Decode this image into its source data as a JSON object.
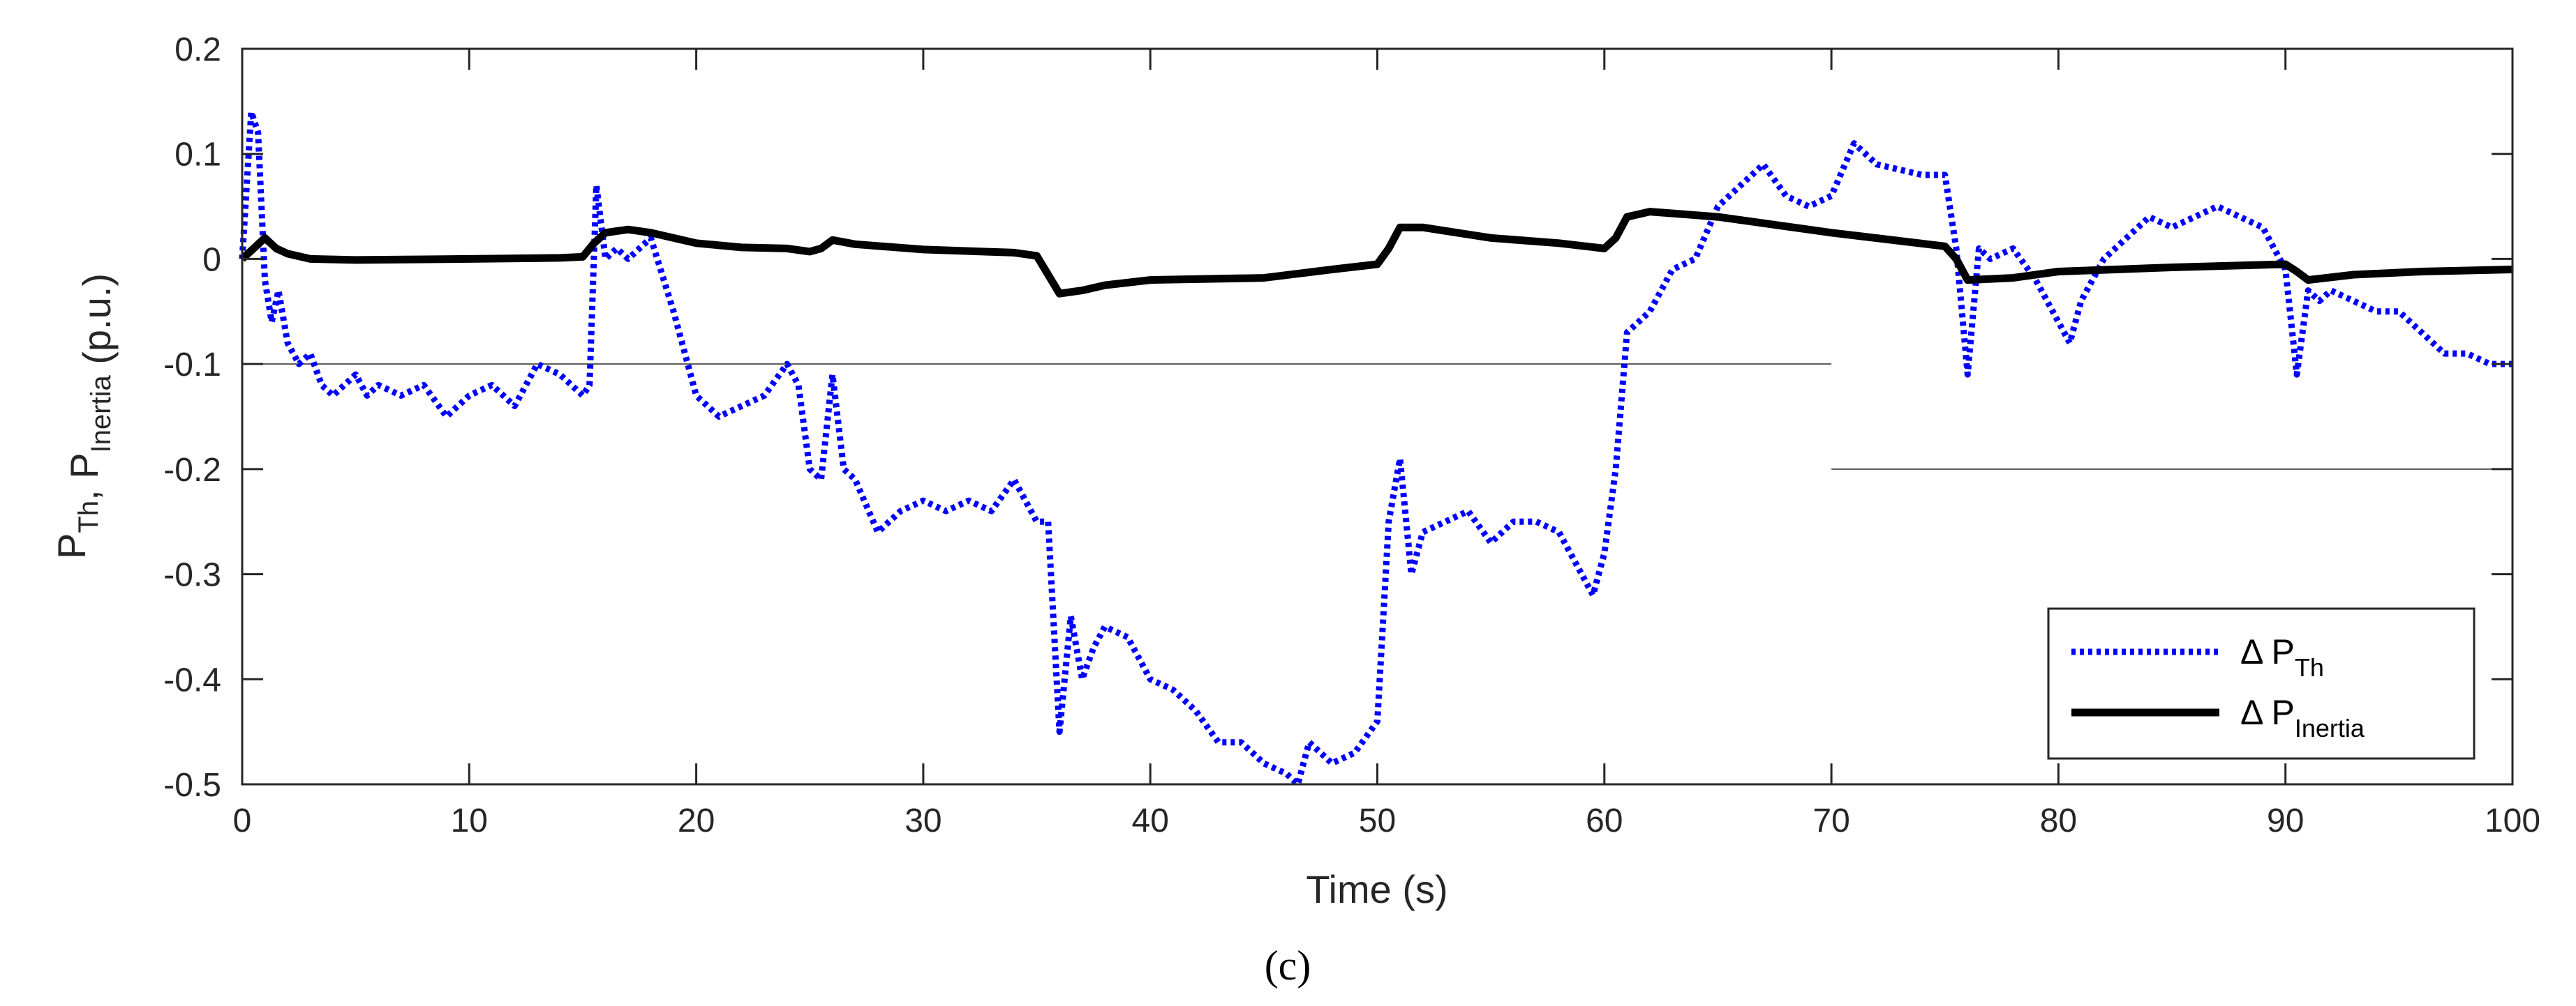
{
  "chart_data": {
    "type": "line",
    "caption": "(c)",
    "xlabel": "Time (s)",
    "ylabel": {
      "parts": [
        {
          "text": "P",
          "sub": "Th"
        },
        {
          "text": ", P",
          "sub": "Inertia"
        },
        {
          "text": " (p.u.)",
          "sub": ""
        }
      ]
    },
    "xlim": [
      0,
      100
    ],
    "ylim": [
      -0.5,
      0.2
    ],
    "xticks": [
      0,
      10,
      20,
      30,
      40,
      50,
      60,
      70,
      80,
      90,
      100
    ],
    "yticks": [
      -0.5,
      -0.4,
      -0.3,
      -0.2,
      -0.1,
      0,
      0.1,
      0.2
    ],
    "xtick_labels": [
      "0",
      "10",
      "20",
      "30",
      "40",
      "50",
      "60",
      "70",
      "80",
      "90",
      "100"
    ],
    "ytick_labels": [
      "-0.5",
      "-0.4",
      "-0.3",
      "-0.2",
      "-0.1",
      "0",
      "0.1",
      "0.2"
    ],
    "grid": false,
    "legend_position": "bottom-right",
    "reference_lines": [
      {
        "y": -0.1,
        "x_range": [
          0,
          70
        ]
      },
      {
        "y": -0.2,
        "x_range": [
          70,
          100
        ]
      }
    ],
    "series": [
      {
        "name": "Δ P",
        "name_sub": "Th",
        "color": "#0000ff",
        "style": "dotted",
        "x": [
          0,
          0.4,
          0.7,
          1.0,
          1.3,
          1.6,
          2.0,
          2.5,
          3.0,
          3.5,
          4.0,
          5.0,
          5.5,
          6.0,
          7.0,
          8.0,
          9.0,
          10.0,
          11.0,
          12.0,
          13.0,
          14.0,
          15.0,
          15.3,
          15.6,
          16.0,
          16.5,
          17.0,
          18.0,
          19.0,
          20.0,
          21.0,
          22.0,
          23.0,
          24.0,
          24.5,
          25.0,
          25.5,
          26.0,
          26.5,
          27.0,
          28.0,
          29.0,
          30.0,
          31.0,
          32.0,
          33.0,
          34.0,
          35.0,
          35.5,
          36.0,
          36.5,
          37.0,
          37.5,
          38.0,
          39.0,
          40.0,
          41.0,
          42.0,
          43.0,
          44.0,
          45.0,
          46.0,
          46.5,
          47.0,
          48.0,
          49.0,
          50.0,
          50.5,
          51.0,
          51.5,
          52.0,
          53.0,
          54.0,
          55.0,
          56.0,
          57.0,
          58.0,
          59.0,
          59.5,
          60.0,
          60.5,
          61.0,
          61.5,
          62.0,
          63.0,
          64.0,
          65.0,
          66.0,
          67.0,
          68.0,
          69.0,
          70.0,
          71.0,
          72.0,
          73.0,
          74.0,
          75.0,
          75.5,
          76.0,
          76.5,
          77.0,
          78.0,
          79.0,
          80.0,
          80.5,
          81.0,
          82.0,
          83.0,
          84.0,
          85.0,
          86.0,
          87.0,
          88.0,
          89.0,
          90.0,
          90.5,
          91.0,
          91.5,
          92.0,
          93.0,
          94.0,
          95.0,
          96.0,
          97.0,
          98.0,
          99.0,
          100.0
        ],
        "y": [
          0,
          0.14,
          0.12,
          -0.02,
          -0.06,
          -0.03,
          -0.08,
          -0.1,
          -0.09,
          -0.12,
          -0.13,
          -0.11,
          -0.13,
          -0.12,
          -0.13,
          -0.12,
          -0.15,
          -0.13,
          -0.12,
          -0.14,
          -0.1,
          -0.11,
          -0.13,
          -0.12,
          0.07,
          0.0,
          0.01,
          0.0,
          0.02,
          -0.05,
          -0.13,
          -0.15,
          -0.14,
          -0.13,
          -0.1,
          -0.12,
          -0.2,
          -0.21,
          -0.11,
          -0.2,
          -0.21,
          -0.26,
          -0.24,
          -0.23,
          -0.24,
          -0.23,
          -0.24,
          -0.21,
          -0.25,
          -0.25,
          -0.45,
          -0.34,
          -0.4,
          -0.37,
          -0.35,
          -0.36,
          -0.4,
          -0.41,
          -0.43,
          -0.46,
          -0.46,
          -0.48,
          -0.49,
          -0.5,
          -0.46,
          -0.48,
          -0.47,
          -0.44,
          -0.25,
          -0.19,
          -0.3,
          -0.26,
          -0.25,
          -0.24,
          -0.27,
          -0.25,
          -0.25,
          -0.26,
          -0.3,
          -0.32,
          -0.28,
          -0.2,
          -0.07,
          -0.06,
          -0.05,
          -0.01,
          0.0,
          0.05,
          0.07,
          0.09,
          0.06,
          0.05,
          0.06,
          0.11,
          0.09,
          0.085,
          0.08,
          0.08,
          0.01,
          -0.11,
          0.01,
          0.0,
          0.01,
          -0.02,
          -0.06,
          -0.08,
          -0.04,
          0.0,
          0.02,
          0.04,
          0.03,
          0.04,
          0.05,
          0.04,
          0.03,
          -0.01,
          -0.11,
          -0.03,
          -0.04,
          -0.03,
          -0.04,
          -0.05,
          -0.05,
          -0.07,
          -0.09,
          -0.09,
          -0.1,
          -0.1
        ]
      },
      {
        "name": "Δ P",
        "name_sub": "Inertia",
        "color": "#000000",
        "style": "solid",
        "x": [
          0,
          0.5,
          1.0,
          1.5,
          2.0,
          3.0,
          5.0,
          10.0,
          14.0,
          15.0,
          15.5,
          16.0,
          17.0,
          18.0,
          20.0,
          22.0,
          24.0,
          25.0,
          25.5,
          26.0,
          27.0,
          30.0,
          34.0,
          35.0,
          35.5,
          36.0,
          37.0,
          38.0,
          40.0,
          45.0,
          48.0,
          50.0,
          50.5,
          51.0,
          52.0,
          55.0,
          58.0,
          60.0,
          60.5,
          61.0,
          62.0,
          65.0,
          70.0,
          75.0,
          75.5,
          76.0,
          78.0,
          80.0,
          85.0,
          90.0,
          90.5,
          91.0,
          93.0,
          96.0,
          100.0
        ],
        "y": [
          0,
          0.01,
          0.02,
          0.01,
          0.005,
          0,
          -0.001,
          0,
          0.001,
          0.002,
          0.015,
          0.025,
          0.028,
          0.025,
          0.015,
          0.011,
          0.01,
          0.007,
          0.01,
          0.018,
          0.014,
          0.009,
          0.006,
          0.003,
          -0.015,
          -0.033,
          -0.03,
          -0.025,
          -0.02,
          -0.018,
          -0.01,
          -0.005,
          0.01,
          0.03,
          0.03,
          0.02,
          0.015,
          0.01,
          0.02,
          0.04,
          0.045,
          0.04,
          0.025,
          0.012,
          0.0,
          -0.02,
          -0.018,
          -0.012,
          -0.008,
          -0.005,
          -0.012,
          -0.02,
          -0.015,
          -0.012,
          -0.01
        ]
      }
    ]
  }
}
